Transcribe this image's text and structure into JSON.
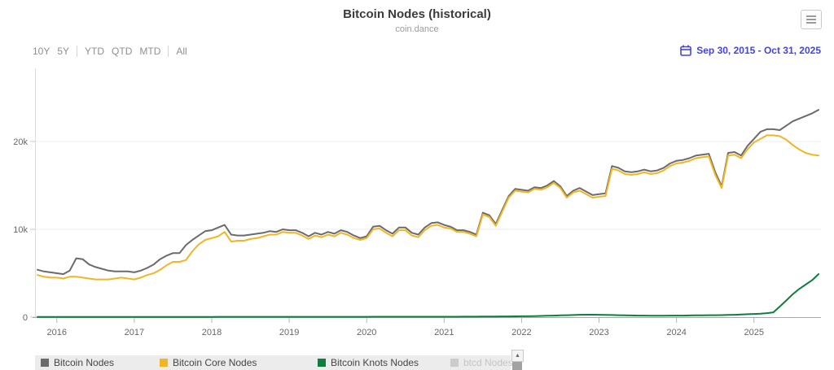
{
  "header": {
    "title": "Bitcoin Nodes (historical)",
    "subtitle": "coin.dance"
  },
  "toolbar": {
    "ranges": [
      "10Y",
      "5Y",
      "YTD",
      "QTD",
      "MTD",
      "All"
    ],
    "date_range": "Sep 30, 2015 - Oct 31, 2025",
    "accent_color": "#4345d8"
  },
  "chart_data": {
    "type": "line",
    "title": "Bitcoin Nodes (historical)",
    "subtitle": "coin.dance",
    "x_start": "Sep 30, 2015",
    "x_end": "Oct 31, 2025",
    "interval": "monthly",
    "x_tick_labels": [
      "2016",
      "2017",
      "2018",
      "2019",
      "2020",
      "2021",
      "2022",
      "2023",
      "2024",
      "2025"
    ],
    "y_ticks": [
      {
        "label": "0",
        "value": 0
      },
      {
        "label": "10k",
        "value": 10000
      },
      {
        "label": "20k",
        "value": 20000
      }
    ],
    "ylim": [
      0,
      28000
    ],
    "grid": "horizontal",
    "legend_position": "bottom",
    "series": [
      {
        "name": "Bitcoin Nodes",
        "color": "#6b6b6b",
        "visible": true,
        "monthly_values": [
          5400,
          5200,
          5100,
          5000,
          4900,
          5300,
          6700,
          6600,
          6000,
          5700,
          5500,
          5300,
          5200,
          5200,
          5200,
          5100,
          5300,
          5600,
          6000,
          6600,
          7000,
          7300,
          7300,
          8200,
          8800,
          9300,
          9800,
          9900,
          10200,
          10500,
          9400,
          9300,
          9300,
          9400,
          9500,
          9600,
          9800,
          9700,
          10000,
          9900,
          9900,
          9600,
          9200,
          9600,
          9400,
          9700,
          9500,
          9900,
          9700,
          9300,
          9000,
          9200,
          10300,
          10400,
          9900,
          9500,
          10200,
          10200,
          9600,
          9400,
          10200,
          10700,
          10800,
          10500,
          10300,
          9900,
          9900,
          9700,
          9400,
          11900,
          11600,
          10600,
          12200,
          13800,
          14600,
          14500,
          14400,
          14800,
          14700,
          15000,
          15500,
          14900,
          13800,
          14400,
          14700,
          14300,
          13900,
          14000,
          14100,
          17200,
          17000,
          16600,
          16500,
          16600,
          16800,
          16600,
          16700,
          17000,
          17500,
          17800,
          17900,
          18100,
          18400,
          18500,
          18600,
          16500,
          14900,
          18700,
          18800,
          18400,
          19500,
          20300,
          21100,
          21400,
          21400,
          21300,
          21800,
          22300,
          22600,
          22900,
          23200,
          23600
        ]
      },
      {
        "name": "Bitcoin Core Nodes",
        "color": "#f0b624",
        "visible": true,
        "monthly_values": [
          4800,
          4600,
          4500,
          4500,
          4400,
          4600,
          4600,
          4500,
          4400,
          4300,
          4300,
          4300,
          4400,
          4500,
          4400,
          4300,
          4500,
          4800,
          5000,
          5400,
          5900,
          6300,
          6300,
          6500,
          7500,
          8300,
          8800,
          9000,
          9200,
          9700,
          8600,
          8700,
          8700,
          8900,
          9000,
          9200,
          9400,
          9400,
          9700,
          9600,
          9600,
          9300,
          8900,
          9300,
          9100,
          9400,
          9200,
          9600,
          9400,
          9000,
          8800,
          9000,
          10000,
          10100,
          9600,
          9200,
          9900,
          9900,
          9300,
          9100,
          9900,
          10400,
          10500,
          10200,
          10100,
          9700,
          9700,
          9500,
          9200,
          11700,
          11400,
          10400,
          12000,
          13600,
          14400,
          14300,
          14200,
          14600,
          14500,
          14800,
          15300,
          14700,
          13600,
          14200,
          14400,
          14000,
          13600,
          13700,
          13800,
          16900,
          16700,
          16300,
          16200,
          16300,
          16500,
          16300,
          16400,
          16700,
          17200,
          17500,
          17600,
          17800,
          18100,
          18200,
          18300,
          16200,
          14700,
          18400,
          18500,
          18100,
          19100,
          19900,
          20300,
          20700,
          20700,
          20600,
          20200,
          19600,
          19100,
          18700,
          18500,
          18400
        ]
      },
      {
        "name": "Bitcoin Knots Nodes",
        "color": "#0e7d3d",
        "visible": true,
        "monthly_values": [
          30,
          30,
          30,
          30,
          30,
          30,
          30,
          30,
          30,
          30,
          30,
          30,
          30,
          30,
          30,
          30,
          30,
          30,
          30,
          30,
          30,
          30,
          30,
          30,
          30,
          30,
          30,
          30,
          40,
          40,
          40,
          40,
          40,
          40,
          40,
          40,
          40,
          40,
          40,
          40,
          40,
          40,
          40,
          40,
          40,
          40,
          40,
          40,
          40,
          40,
          40,
          40,
          50,
          50,
          50,
          50,
          50,
          50,
          50,
          50,
          50,
          50,
          50,
          50,
          50,
          50,
          60,
          60,
          60,
          70,
          70,
          70,
          80,
          80,
          90,
          100,
          100,
          120,
          140,
          160,
          180,
          200,
          220,
          240,
          270,
          280,
          280,
          270,
          260,
          240,
          220,
          200,
          190,
          180,
          180,
          170,
          170,
          170,
          180,
          180,
          180,
          190,
          200,
          210,
          220,
          220,
          230,
          250,
          270,
          300,
          330,
          360,
          400,
          450,
          550,
          1200,
          1900,
          2600,
          3200,
          3700,
          4200,
          4900
        ]
      },
      {
        "name": "btcd Nodes",
        "color": "#cccccc",
        "visible": false,
        "monthly_values": []
      }
    ]
  }
}
